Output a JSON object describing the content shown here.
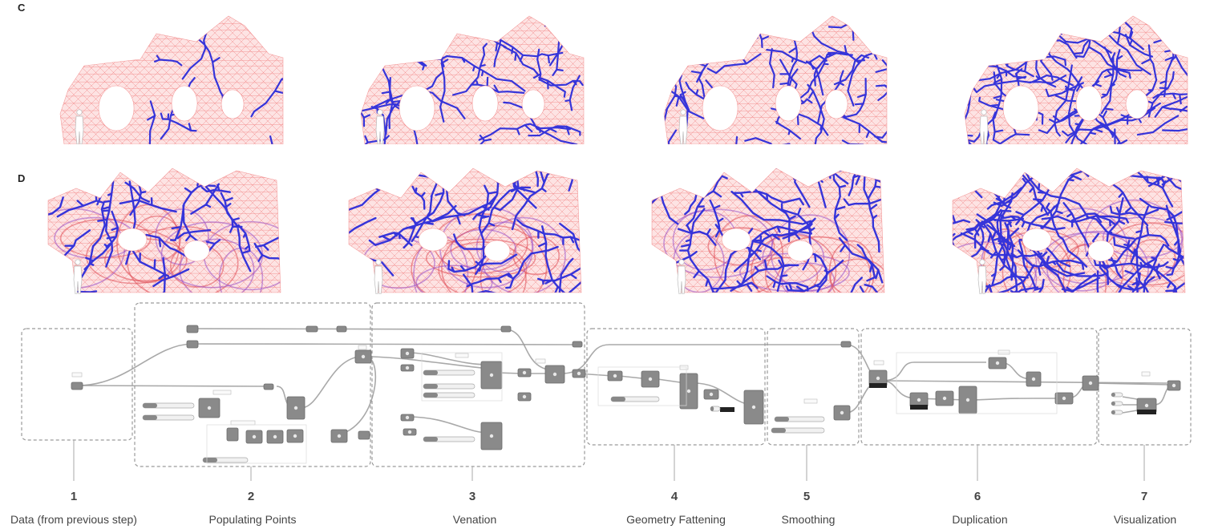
{
  "rows": {
    "c_label": "C",
    "d_label": "D"
  },
  "colors": {
    "mesh": "#f07a7a",
    "mesh_fill": "#fde3e3",
    "veins": "#2b2bd9",
    "component": "#8a8a8a",
    "wire": "#9a9a9a",
    "group_border": "#9a9a9a"
  },
  "vein_density": {
    "row_c": [
      0.1,
      0.35,
      0.7,
      1.0
    ],
    "row_d": [
      0.35,
      0.5,
      0.55,
      1.0
    ]
  },
  "steps": [
    {
      "num": "1",
      "name": "Data (from previous step)"
    },
    {
      "num": "2",
      "name": "Populating Points"
    },
    {
      "num": "3",
      "name": "Venation"
    },
    {
      "num": "4",
      "name": "Geometry Fattening"
    },
    {
      "num": "5",
      "name": "Smoothing"
    },
    {
      "num": "6",
      "name": "Duplication"
    },
    {
      "num": "7",
      "name": "Visualization"
    }
  ]
}
